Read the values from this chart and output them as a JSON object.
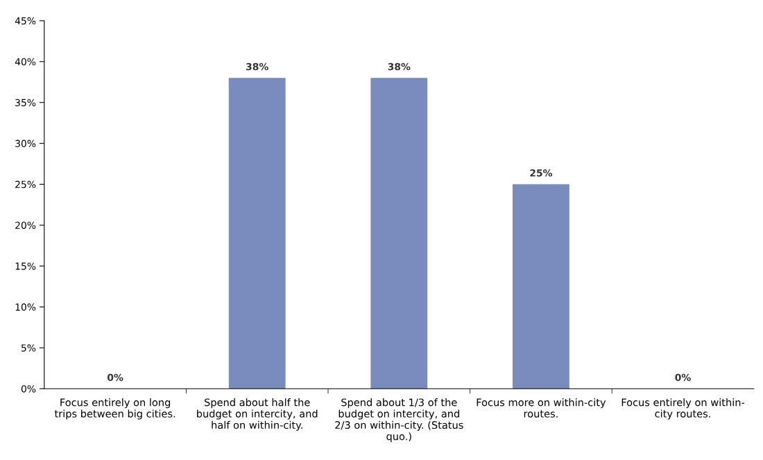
{
  "chart_data": {
    "type": "bar",
    "categories": [
      "Focus entirely on long\ntrips between big cities.",
      "Spend about half the\nbudget on intercity, and\nhalf on within-city.",
      "Spend about 1/3 of the\nbudget on intercity, and\n2/3 on within-city. (Status\nquo.)",
      "Focus more on within-city\nroutes.",
      "Focus entirely on within-\ncity routes."
    ],
    "values": [
      0,
      38,
      38,
      25,
      0
    ],
    "value_labels": [
      "0%",
      "38%",
      "38%",
      "25%",
      "0%"
    ],
    "color": "#7a8cbd",
    "ylim": [
      0,
      45
    ],
    "yticks": [
      {
        "value": 0,
        "label": "0%"
      },
      {
        "value": 5,
        "label": "5%"
      },
      {
        "value": 10,
        "label": "10%"
      },
      {
        "value": 15,
        "label": "15%"
      },
      {
        "value": 20,
        "label": "20%"
      },
      {
        "value": 25,
        "label": "25%"
      },
      {
        "value": 30,
        "label": "30%"
      },
      {
        "value": 35,
        "label": "35%"
      },
      {
        "value": 40,
        "label": "40%"
      },
      {
        "value": 45,
        "label": "45%"
      }
    ],
    "grid": false
  }
}
